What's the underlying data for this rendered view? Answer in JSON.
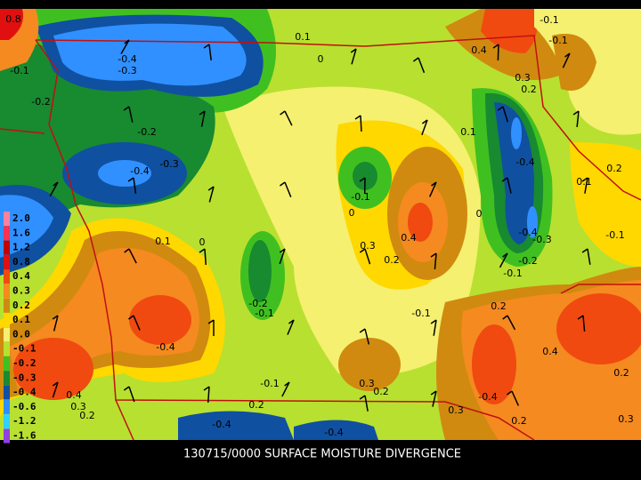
{
  "map": {
    "title": "130715/0000 SURFACE MOISTURE DIVERGENCE",
    "legend": [
      {
        "label": "2.0",
        "color": "#ff7fa0"
      },
      {
        "label": "1.6",
        "color": "#ff3050"
      },
      {
        "label": "1.2",
        "color": "#c00000"
      },
      {
        "label": "0.8",
        "color": "#e01010"
      },
      {
        "label": "0.4",
        "color": "#f04a10"
      },
      {
        "label": "0.3",
        "color": "#f58a20"
      },
      {
        "label": "0.2",
        "color": "#d08a10"
      },
      {
        "label": "0.1",
        "color": "#ffd800"
      },
      {
        "label": "0.0",
        "color": "#f5f070"
      },
      {
        "label": "-0.1",
        "color": "#b8e030"
      },
      {
        "label": "-0.2",
        "color": "#40c020"
      },
      {
        "label": "-0.3",
        "color": "#188a30"
      },
      {
        "label": "-0.4",
        "color": "#1050a0"
      },
      {
        "label": "-0.6",
        "color": "#3090ff"
      },
      {
        "label": "-1.2",
        "color": "#30d0ff"
      },
      {
        "label": "-1.6",
        "color": "#9040e0"
      }
    ],
    "contour_labels": [
      "0.1",
      "0",
      "-0.4",
      "-0.3",
      "-0.2",
      "-0.2",
      "-0.4",
      "-0.3",
      "0.4",
      "0.3",
      "0.2",
      "0.1",
      "-0.4",
      "0",
      "-0.1",
      "0.4",
      "0.3",
      "0.2",
      "0",
      "-0.4",
      "-0.3",
      "-0.2",
      "-0.1",
      "0.1",
      "0",
      "-0.2",
      "-0.1",
      "-0.1",
      "0.2",
      "-0.4",
      "0.4",
      "0.2",
      "0.3",
      "0.4",
      "0.3",
      "0.2",
      "-0.1",
      "0.2",
      "0.3",
      "0.2",
      "-0.4",
      "0.3",
      "0.2",
      "-0.4",
      "-0.4",
      "0.2",
      "0.1",
      "-0.1",
      "-0.1",
      "-0.1",
      "0.8",
      "-0.1"
    ]
  }
}
